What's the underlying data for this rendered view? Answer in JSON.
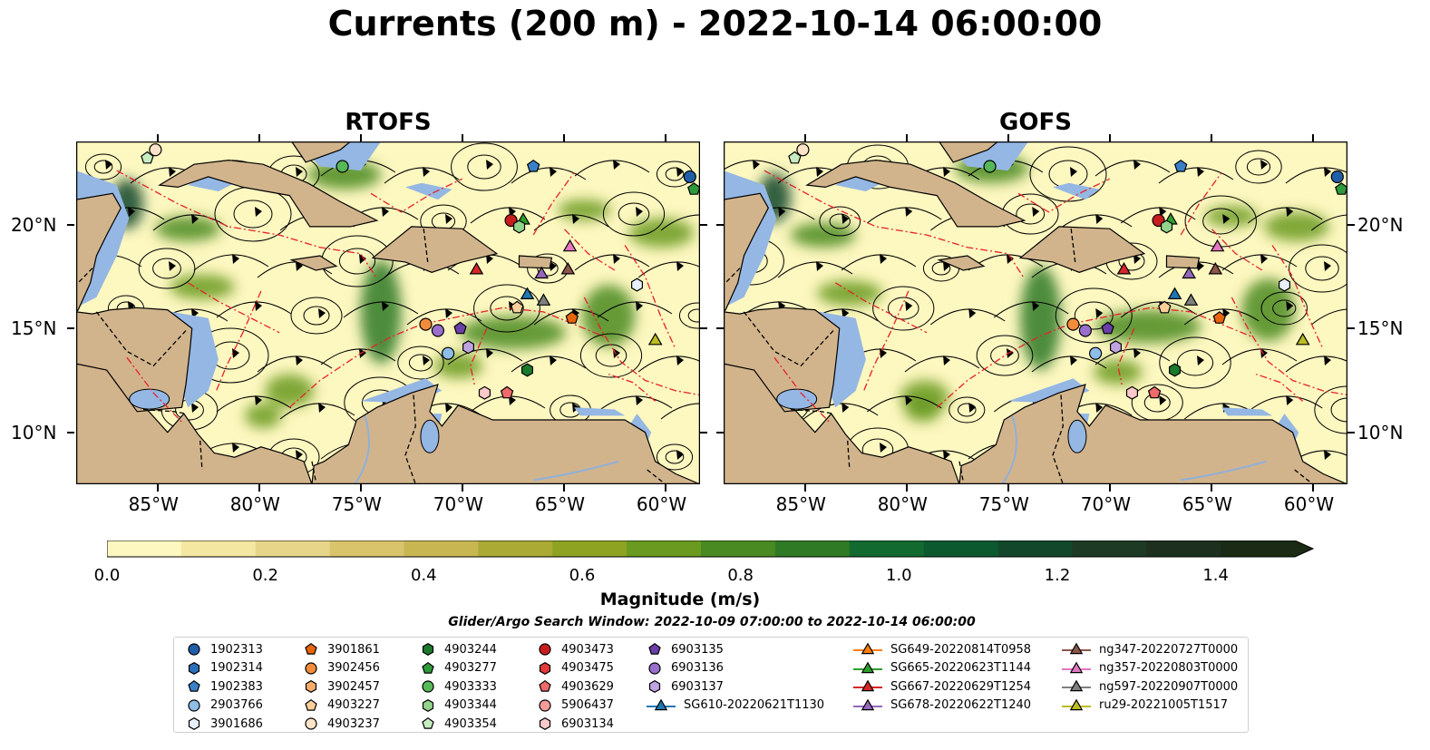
{
  "title": "Currents (200 m) - 2022-10-14 06:00:00",
  "panels": [
    {
      "title": "RTOFS"
    },
    {
      "title": "GOFS"
    }
  ],
  "axes": {
    "lon_labels": [
      "85°W",
      "80°W",
      "75°W",
      "70°W",
      "65°W",
      "60°W"
    ],
    "lon_values": [
      -85,
      -80,
      -75,
      -70,
      -65,
      -60
    ],
    "lat_labels": [
      "20°N",
      "15°N",
      "10°N"
    ],
    "lat_values": [
      20,
      15,
      10
    ],
    "lon_range": [
      -89,
      -58.3
    ],
    "lat_range": [
      7.5,
      24
    ]
  },
  "colors": {
    "land": "#d2b48c",
    "water_shallow": "#94b7e3",
    "current_slow": "#fdf7c0",
    "current_fast": "#1a2a14",
    "boundaries": "#e8202a"
  },
  "colorbar": {
    "label": "Magnitude (m/s)",
    "ticks": [
      "0.0",
      "0.2",
      "0.4",
      "0.6",
      "0.8",
      "1.0",
      "1.2",
      "1.4"
    ],
    "tick_values": [
      0.0,
      0.2,
      0.4,
      0.6,
      0.8,
      1.0,
      1.2,
      1.4
    ],
    "range": [
      0.0,
      1.5
    ],
    "colors": [
      "#fdf7c0",
      "#f3e7a2",
      "#e7d68a",
      "#d9c46c",
      "#c8b652",
      "#aaaa35",
      "#8ea321",
      "#6a9a20",
      "#4a8a22",
      "#2f7a25",
      "#136a30",
      "#0c5930",
      "#13472b",
      "#1c3a24",
      "#1d3020",
      "#1a2a14"
    ]
  },
  "search_window": "Glider/Argo Search Window: 2022-10-09 07:00:00 to 2022-10-14 06:00:00",
  "legend": [
    {
      "label": "1902313",
      "marker": "circle",
      "color": "#1f5fa8"
    },
    {
      "label": "1902314",
      "marker": "hexagon",
      "color": "#2a6fba"
    },
    {
      "label": "1902383",
      "marker": "pentagon",
      "color": "#3a80c8"
    },
    {
      "label": "2903766",
      "marker": "circle",
      "color": "#8ebde8"
    },
    {
      "label": "3901686",
      "marker": "hexagon",
      "color": "#e7f0fb"
    },
    {
      "label": "3901861",
      "marker": "pentagon",
      "color": "#e8650c"
    },
    {
      "label": "3902456",
      "marker": "circle",
      "color": "#f28c3a"
    },
    {
      "label": "3902457",
      "marker": "hexagon",
      "color": "#f7ad6a"
    },
    {
      "label": "4903227",
      "marker": "pentagon",
      "color": "#fbcf9a"
    },
    {
      "label": "4903237",
      "marker": "circle",
      "color": "#fde3c8"
    },
    {
      "label": "4903244",
      "marker": "hexagon",
      "color": "#1b7a2b"
    },
    {
      "label": "4903277",
      "marker": "pentagon",
      "color": "#2e9a3a"
    },
    {
      "label": "4903333",
      "marker": "circle",
      "color": "#56b857"
    },
    {
      "label": "4903344",
      "marker": "hexagon",
      "color": "#93d48c"
    },
    {
      "label": "4903354",
      "marker": "pentagon",
      "color": "#c6ecbf"
    },
    {
      "label": "4903473",
      "marker": "circle",
      "color": "#c81d1d"
    },
    {
      "label": "4903475",
      "marker": "hexagon",
      "color": "#e33a3a"
    },
    {
      "label": "4903629",
      "marker": "pentagon",
      "color": "#ef6a6a"
    },
    {
      "label": "5906437",
      "marker": "circle",
      "color": "#f59b9b"
    },
    {
      "label": "6903134",
      "marker": "hexagon",
      "color": "#fbc9c9"
    },
    {
      "label": "6903135",
      "marker": "pentagon",
      "color": "#6a3fa8"
    },
    {
      "label": "6903136",
      "marker": "circle",
      "color": "#9a6fcc"
    },
    {
      "label": "6903137",
      "marker": "hexagon",
      "color": "#c0a4e2"
    },
    {
      "label": "SG610-20220621T1130",
      "marker": "triangle-line",
      "color": "#1f77b4"
    },
    {
      "label": "SG649-20220814T0958",
      "marker": "triangle-line",
      "color": "#ff7f0e"
    },
    {
      "label": "SG665-20220623T1144",
      "marker": "triangle-line",
      "color": "#2ca02c"
    },
    {
      "label": "SG667-20220629T1254",
      "marker": "triangle-line",
      "color": "#d62728"
    },
    {
      "label": "SG678-20220622T1240",
      "marker": "triangle-line",
      "color": "#9467bd"
    },
    {
      "label": "ng347-20220727T0000",
      "marker": "triangle-line",
      "color": "#8c564b"
    },
    {
      "label": "ng357-20220803T0000",
      "marker": "triangle-line",
      "color": "#e377c2"
    },
    {
      "label": "ng597-20220907T0000",
      "marker": "triangle-line",
      "color": "#7f7f7f"
    },
    {
      "label": "ru29-20221005T1517",
      "marker": "triangle-line",
      "color": "#bcbd22"
    }
  ],
  "markers": [
    {
      "id": "1902313",
      "lon": -58.8,
      "lat": 22.3
    },
    {
      "id": "4903277",
      "lon": -58.6,
      "lat": 21.7
    },
    {
      "id": "1902383",
      "lon": -66.5,
      "lat": 22.8
    },
    {
      "id": "4903333",
      "lon": -75.9,
      "lat": 22.8
    },
    {
      "id": "4903354",
      "lon": -85.5,
      "lat": 23.2
    },
    {
      "id": "4903237",
      "lon": -85.1,
      "lat": 23.6
    },
    {
      "id": "4903473",
      "lon": -67.6,
      "lat": 20.2
    },
    {
      "id": "SG665-20220623T1144",
      "lon": -67.0,
      "lat": 20.2
    },
    {
      "id": "4903344",
      "lon": -67.2,
      "lat": 19.9
    },
    {
      "id": "ng357-20220803T0000",
      "lon": -64.7,
      "lat": 18.9
    },
    {
      "id": "SG667-20220629T1254",
      "lon": -69.3,
      "lat": 17.8
    },
    {
      "id": "ng347-20220727T0000",
      "lon": -64.8,
      "lat": 17.8
    },
    {
      "id": "SG678-20220622T1240",
      "lon": -66.1,
      "lat": 17.6
    },
    {
      "id": "3901686",
      "lon": -61.4,
      "lat": 17.1
    },
    {
      "id": "SG610-20220621T1130",
      "lon": -66.8,
      "lat": 16.6
    },
    {
      "id": "ng597-20220907T0000",
      "lon": -66.0,
      "lat": 16.3
    },
    {
      "id": "4903227",
      "lon": -67.3,
      "lat": 16.0
    },
    {
      "id": "3901861",
      "lon": -64.6,
      "lat": 15.5
    },
    {
      "id": "3902456",
      "lon": -71.8,
      "lat": 15.2
    },
    {
      "id": "6903136",
      "lon": -71.2,
      "lat": 14.9
    },
    {
      "id": "6903135",
      "lon": -70.1,
      "lat": 15.0
    },
    {
      "id": "ru29-20221005T1517",
      "lon": -60.5,
      "lat": 14.4
    },
    {
      "id": "6903137",
      "lon": -69.7,
      "lat": 14.1
    },
    {
      "id": "2903766",
      "lon": -70.7,
      "lat": 13.8
    },
    {
      "id": "4903244",
      "lon": -66.8,
      "lat": 13.0
    },
    {
      "id": "6903134",
      "lon": -68.9,
      "lat": 11.9
    },
    {
      "id": "4903629",
      "lon": -67.8,
      "lat": 11.9
    }
  ]
}
